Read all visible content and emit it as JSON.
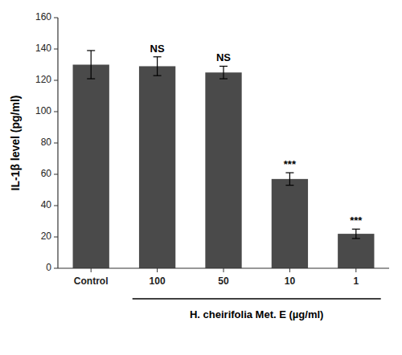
{
  "chart_data": {
    "type": "bar",
    "categories": [
      "Control",
      "100",
      "50",
      "10",
      "1"
    ],
    "values": [
      130,
      129,
      125,
      57,
      22
    ],
    "errors": [
      9,
      6,
      4,
      4,
      3
    ],
    "color": "#4a4a4a",
    "ylim": [
      0,
      160
    ],
    "yticks": [
      0,
      20,
      40,
      60,
      80,
      100,
      120,
      140,
      160
    ],
    "ylabel": "IL-1β level (pg/ml)",
    "xlabel": "H. cheirifolia Met. E (µg/ml)",
    "annotations": [
      null,
      "NS",
      "NS",
      "***",
      "***"
    ],
    "grid": false
  }
}
